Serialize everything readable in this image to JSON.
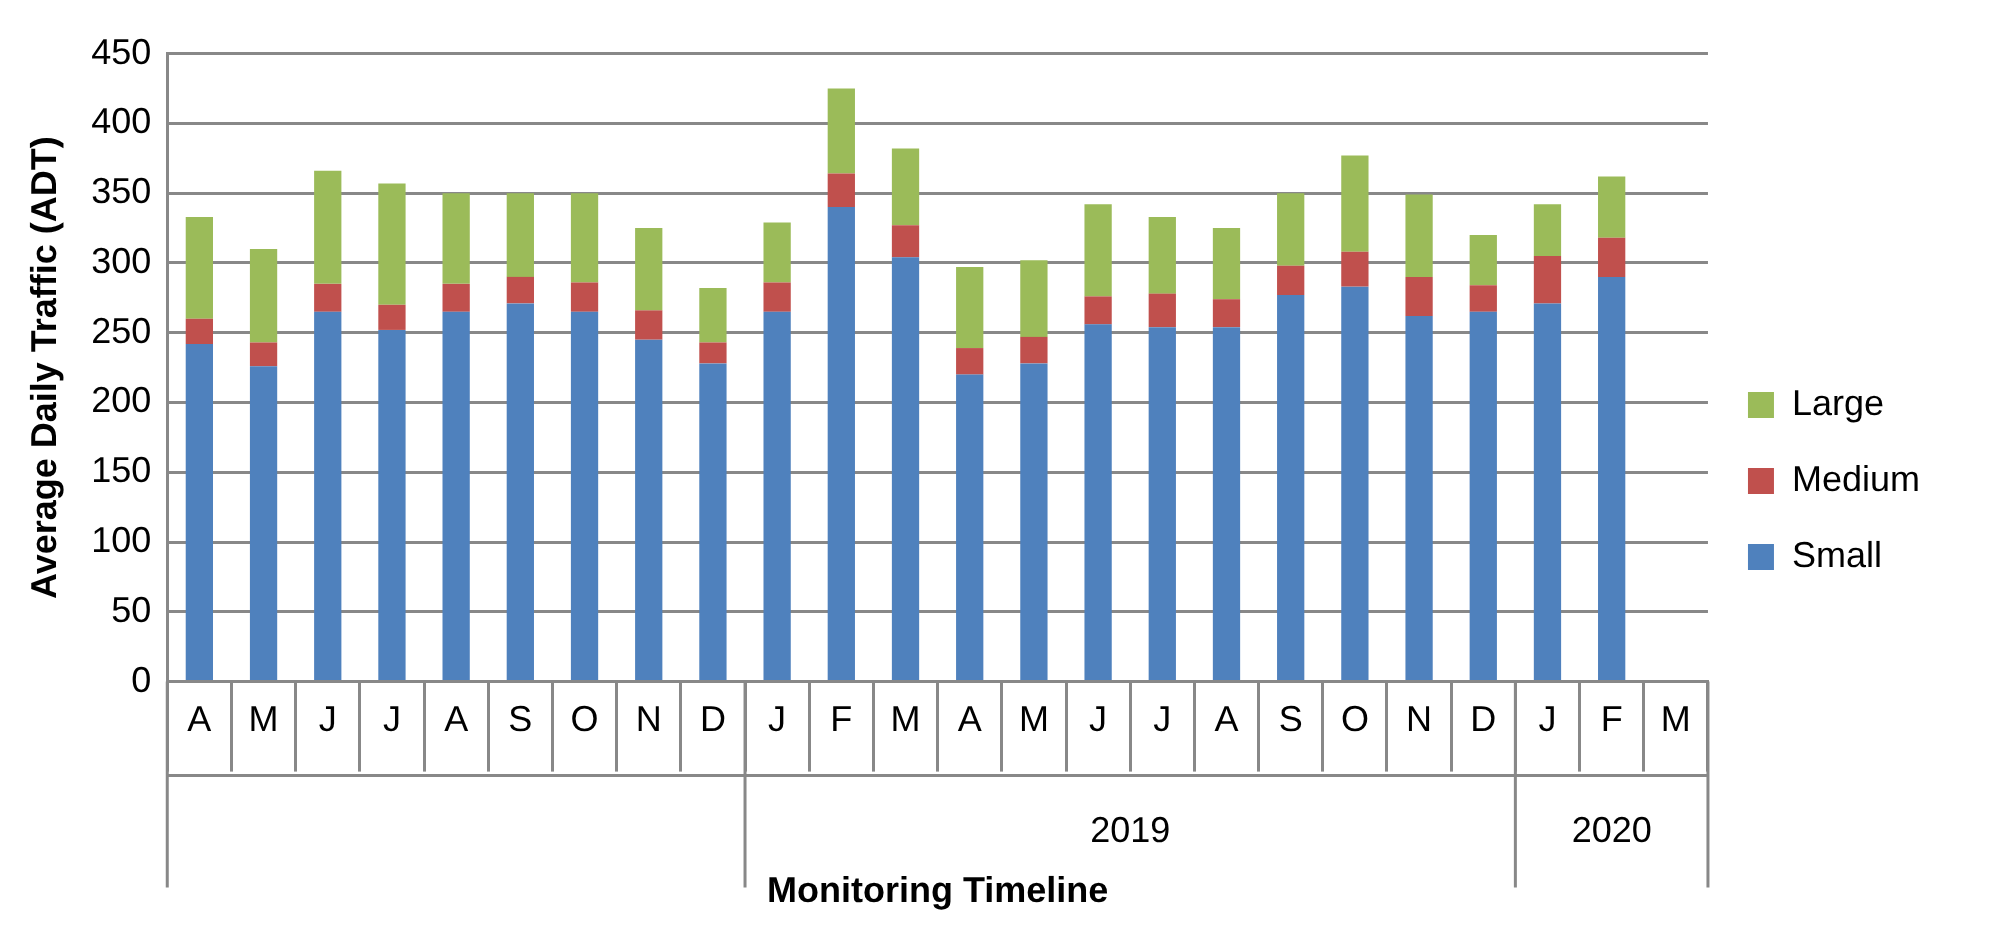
{
  "chart_data": {
    "type": "bar",
    "stacked": true,
    "xlabel": "Monitoring Timeline",
    "ylabel": "Average Daily Traffic (ADT)",
    "categories": [
      "A",
      "M",
      "J",
      "J",
      "A",
      "S",
      "O",
      "N",
      "D",
      "J",
      "F",
      "M",
      "A",
      "M",
      "J",
      "J",
      "A",
      "S",
      "O",
      "N",
      "D",
      "J",
      "F",
      "M"
    ],
    "series": [
      {
        "name": "Small",
        "color": "#4f81bd",
        "values": [
          242,
          226,
          265,
          252,
          265,
          271,
          265,
          245,
          228,
          265,
          340,
          304,
          220,
          228,
          256,
          254,
          254,
          277,
          283,
          262,
          265,
          271,
          290,
          null
        ]
      },
      {
        "name": "Medium",
        "color": "#c0504d",
        "values": [
          18,
          17,
          20,
          18,
          20,
          19,
          21,
          21,
          15,
          21,
          24,
          23,
          19,
          19,
          20,
          24,
          20,
          21,
          25,
          28,
          19,
          34,
          28,
          null
        ]
      },
      {
        "name": "Large",
        "color": "#9bbb59",
        "values": [
          73,
          67,
          81,
          87,
          65,
          60,
          64,
          59,
          39,
          43,
          61,
          55,
          58,
          55,
          66,
          55,
          51,
          52,
          69,
          59,
          36,
          37,
          44,
          null
        ]
      }
    ],
    "annotations": [
      "2019",
      "2020"
    ],
    "ylim": [
      0,
      450
    ],
    "yticks": [
      0,
      50,
      100,
      150,
      200,
      250,
      300,
      350,
      400,
      450
    ],
    "grid": "y",
    "legend": "right"
  }
}
